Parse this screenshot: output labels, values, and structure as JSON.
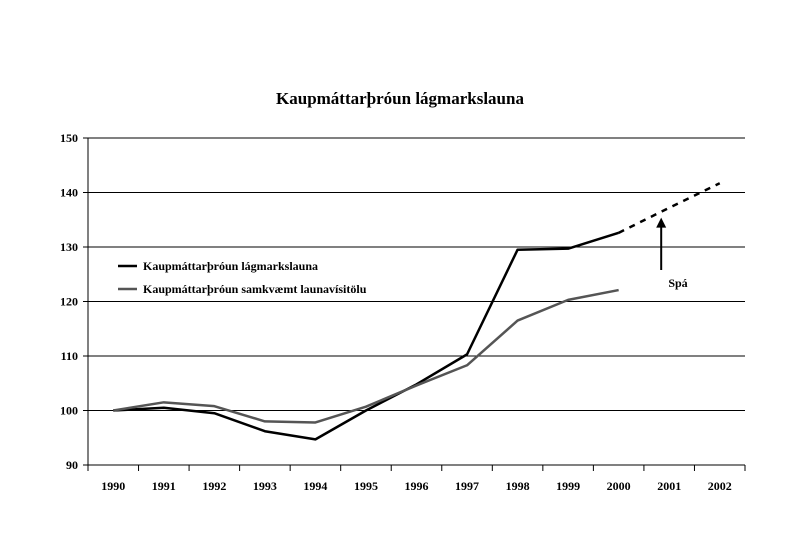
{
  "chart_data": {
    "type": "line",
    "title": "Kaupmáttarþróun lágmarkslauna",
    "xlabel": "",
    "ylabel": "",
    "categories": [
      "1990",
      "1991",
      "1992",
      "1993",
      "1994",
      "1995",
      "1996",
      "1997",
      "1998",
      "1999",
      "2000",
      "2001",
      "2002"
    ],
    "ylim": [
      90,
      150
    ],
    "yticks": [
      90,
      100,
      110,
      120,
      130,
      140,
      150
    ],
    "grid": true,
    "legend_position": "left",
    "series": [
      {
        "name": "Kaupmáttarþróun lágmarkslauna",
        "color": "#000000",
        "values": [
          100,
          100.5,
          99.5,
          96.2,
          94.7,
          100.0,
          104.8,
          110.3,
          129.5,
          129.7,
          132.6,
          null,
          null
        ]
      },
      {
        "name": "Kaupmáttarþróun samkvæmt launavísitölu",
        "color": "#555555",
        "values": [
          100,
          101.5,
          100.8,
          98.0,
          97.8,
          100.7,
          104.6,
          108.3,
          116.5,
          120.3,
          122.1,
          null,
          null
        ]
      }
    ],
    "forecast": {
      "series": "Kaupmáttarþróun lágmarkslauna",
      "style": "dashed",
      "x": [
        "2000",
        "2001",
        "2002"
      ],
      "values": [
        132.6,
        137.2,
        141.7
      ]
    },
    "annotations": [
      {
        "text": "Spá",
        "arrow_to": {
          "x": "2001",
          "y": 136.5
        }
      }
    ]
  }
}
